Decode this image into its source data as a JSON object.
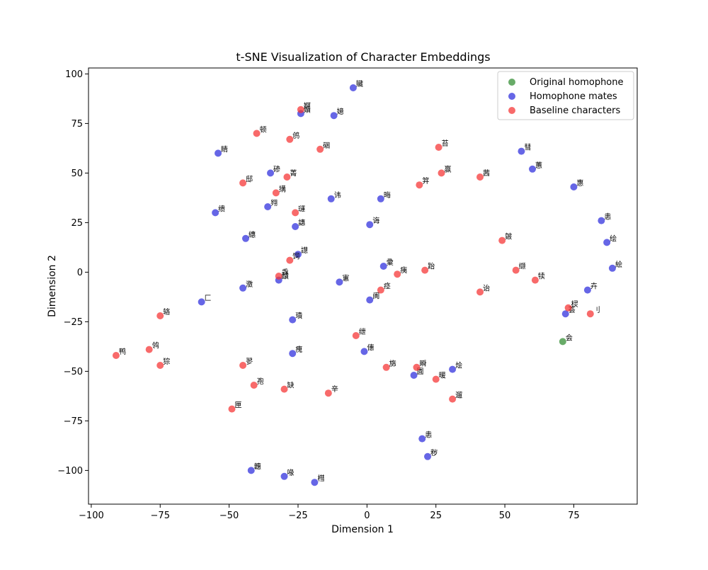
{
  "chart_data": {
    "type": "scatter",
    "title": "t-SNE Visualization of Character Embeddings",
    "xlabel": "Dimension 1",
    "ylabel": "Dimension 2",
    "xlim": [
      -101,
      98
    ],
    "ylim": [
      -117,
      103
    ],
    "xticks": [
      -100,
      -75,
      -50,
      -25,
      0,
      25,
      50,
      75
    ],
    "yticks": [
      -100,
      -75,
      -50,
      -25,
      0,
      25,
      50,
      75,
      100
    ],
    "xtick_labels": [
      "−100",
      "−75",
      "−50",
      "−25",
      "0",
      "25",
      "50",
      "75"
    ],
    "ytick_labels": [
      "−100",
      "−75",
      "−50",
      "−25",
      "0",
      "25",
      "50",
      "75",
      "100"
    ],
    "grid": false,
    "legend_position": "top-right",
    "series": [
      {
        "name": "Original homophone",
        "color": "#2e8b2e",
        "points": [
          {
            "x": 71,
            "y": -35,
            "label": "会"
          }
        ]
      },
      {
        "name": "Homophone mates",
        "color": "#2b2bdd",
        "points": [
          {
            "x": -5,
            "y": 93,
            "label": "贜"
          },
          {
            "x": -24,
            "y": 80,
            "label": "嬇"
          },
          {
            "x": -12,
            "y": 79,
            "label": "嬑"
          },
          {
            "x": -54,
            "y": 60,
            "label": "睛"
          },
          {
            "x": -35,
            "y": 50,
            "label": "碜"
          },
          {
            "x": 56,
            "y": 61,
            "label": "彗"
          },
          {
            "x": 60,
            "y": 52,
            "label": "蕙"
          },
          {
            "x": 75,
            "y": 43,
            "label": "惠"
          },
          {
            "x": -55,
            "y": 30,
            "label": "缋"
          },
          {
            "x": -36,
            "y": 33,
            "label": "翙"
          },
          {
            "x": -13,
            "y": 37,
            "label": "讳"
          },
          {
            "x": 5,
            "y": 37,
            "label": "晦"
          },
          {
            "x": -26,
            "y": 23,
            "label": "譓"
          },
          {
            "x": 1,
            "y": 24,
            "label": "诲"
          },
          {
            "x": 85,
            "y": 26,
            "label": "恚"
          },
          {
            "x": -44,
            "y": 17,
            "label": "繐"
          },
          {
            "x": 87,
            "y": 15,
            "label": "绘"
          },
          {
            "x": -25,
            "y": 9,
            "label": "譿"
          },
          {
            "x": 6,
            "y": 3,
            "label": "彚"
          },
          {
            "x": 89,
            "y": 2,
            "label": "絵"
          },
          {
            "x": -32,
            "y": -4,
            "label": "靧"
          },
          {
            "x": -10,
            "y": -5,
            "label": "寭"
          },
          {
            "x": -45,
            "y": -8,
            "label": "瀓"
          },
          {
            "x": 80,
            "y": -9,
            "label": "卉"
          },
          {
            "x": 1,
            "y": -14,
            "label": "阓"
          },
          {
            "x": -60,
            "y": -15,
            "label": "匚"
          },
          {
            "x": 72,
            "y": -21,
            "label": "荟"
          },
          {
            "x": -27,
            "y": -24,
            "label": "璳"
          },
          {
            "x": -1,
            "y": -40,
            "label": "僡"
          },
          {
            "x": -27,
            "y": -41,
            "label": "瘣"
          },
          {
            "x": 31,
            "y": -49,
            "label": "烩"
          },
          {
            "x": 17,
            "y": -52,
            "label": "圚"
          },
          {
            "x": 20,
            "y": -84,
            "label": "恚"
          },
          {
            "x": 22,
            "y": -93,
            "label": "秽"
          },
          {
            "x": -42,
            "y": -100,
            "label": "韢"
          },
          {
            "x": -30,
            "y": -103,
            "label": "喙"
          },
          {
            "x": -19,
            "y": -106,
            "label": "槥"
          }
        ]
      },
      {
        "name": "Baseline characters",
        "color": "#f53030",
        "points": [
          {
            "x": -24,
            "y": 82,
            "label": "婀"
          },
          {
            "x": -40,
            "y": 70,
            "label": "顿"
          },
          {
            "x": -28,
            "y": 67,
            "label": "鸧"
          },
          {
            "x": -17,
            "y": 62,
            "label": "硱"
          },
          {
            "x": 26,
            "y": 63,
            "label": "苔"
          },
          {
            "x": -29,
            "y": 48,
            "label": "菁"
          },
          {
            "x": 27,
            "y": 50,
            "label": "赢"
          },
          {
            "x": 41,
            "y": 48,
            "label": "茜"
          },
          {
            "x": -45,
            "y": 45,
            "label": "邸"
          },
          {
            "x": 19,
            "y": 44,
            "label": "笄"
          },
          {
            "x": -33,
            "y": 40,
            "label": "搆"
          },
          {
            "x": -26,
            "y": 30,
            "label": "璭"
          },
          {
            "x": 49,
            "y": 16,
            "label": "皴"
          },
          {
            "x": -28,
            "y": 6,
            "label": "饲"
          },
          {
            "x": 21,
            "y": 1,
            "label": "跆"
          },
          {
            "x": 54,
            "y": 1,
            "label": "缬"
          },
          {
            "x": 11,
            "y": -1,
            "label": "痍"
          },
          {
            "x": -32,
            "y": -2,
            "label": "毳"
          },
          {
            "x": 61,
            "y": -4,
            "label": "犊"
          },
          {
            "x": 5,
            "y": -9,
            "label": "痉"
          },
          {
            "x": 41,
            "y": -10,
            "label": "诒"
          },
          {
            "x": 73,
            "y": -18,
            "label": "棂"
          },
          {
            "x": 81,
            "y": -21,
            "label": "刂"
          },
          {
            "x": -75,
            "y": -22,
            "label": "辂"
          },
          {
            "x": -4,
            "y": -32,
            "label": "绁"
          },
          {
            "x": -79,
            "y": -39,
            "label": "鸰"
          },
          {
            "x": -91,
            "y": -42,
            "label": "鸭"
          },
          {
            "x": -75,
            "y": -47,
            "label": "猔"
          },
          {
            "x": -45,
            "y": -47,
            "label": "翏"
          },
          {
            "x": 7,
            "y": -48,
            "label": "旆"
          },
          {
            "x": 18,
            "y": -48,
            "label": "瞬"
          },
          {
            "x": 25,
            "y": -54,
            "label": "暖"
          },
          {
            "x": -41,
            "y": -57,
            "label": "孢"
          },
          {
            "x": -30,
            "y": -59,
            "label": "缺"
          },
          {
            "x": -14,
            "y": -61,
            "label": "辛"
          },
          {
            "x": 31,
            "y": -64,
            "label": "遛"
          },
          {
            "x": -49,
            "y": -69,
            "label": "匣"
          }
        ]
      }
    ]
  }
}
